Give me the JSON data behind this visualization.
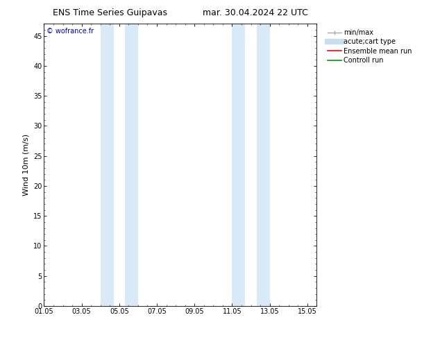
{
  "title_left": "ENS Time Series Guipavas",
  "title_right": "mar. 30.04.2024 22 UTC",
  "ylabel": "Wind 10m (m/s)",
  "xlim": [
    0,
    14.5
  ],
  "ylim": [
    0,
    47
  ],
  "yticks": [
    0,
    5,
    10,
    15,
    20,
    25,
    30,
    35,
    40,
    45
  ],
  "xtick_labels": [
    "01.05",
    "03.05",
    "05.05",
    "07.05",
    "09.05",
    "11.05",
    "13.05",
    "15.05"
  ],
  "xtick_positions": [
    0,
    2,
    4,
    6,
    8,
    10,
    12,
    14
  ],
  "shaded_stripes": [
    [
      3.0,
      3.7
    ],
    [
      4.3,
      5.0
    ],
    [
      10.0,
      10.7
    ],
    [
      11.3,
      12.0
    ]
  ],
  "shade_color": "#d8eaf8",
  "background_color": "#ffffff",
  "plot_bg_color": "#ffffff",
  "watermark_text": "© wofrance.fr",
  "watermark_color": "#0000cc",
  "legend_entries": [
    {
      "label": "min/max",
      "color": "#aaaaaa",
      "lw": 1.2
    },
    {
      "label": "acute;cart type",
      "color": "#c8dff0",
      "lw": 6
    },
    {
      "label": "Ensemble mean run",
      "color": "#ff0000",
      "lw": 1.2
    },
    {
      "label": "Controll run",
      "color": "#009900",
      "lw": 1.2
    }
  ],
  "font_size_title": 9,
  "font_size_labels": 8,
  "font_size_ticks": 7,
  "font_size_legend": 7,
  "font_size_watermark": 7
}
